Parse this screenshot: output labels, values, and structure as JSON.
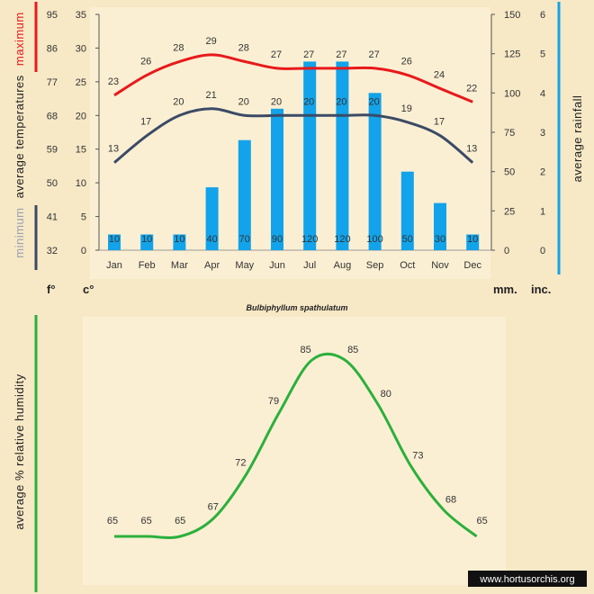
{
  "colors": {
    "maximum": "#e8191b",
    "minimum": "#3b4a66",
    "minimum_label": "#9aa1b2",
    "rainfall": "#12a3ea",
    "humidity": "#2bb03c"
  },
  "labels": {
    "species": "Bulbiphyllum spathulatum",
    "watermark": "www.hortusorchis.org",
    "unit_f": "f°",
    "unit_c": "c°",
    "unit_mm": "mm.",
    "unit_inc": "inc.",
    "temp_max_word": "maximum",
    "temp_avg_word": "average  temperatures",
    "temp_min_word": "minimum",
    "rain_title": "average rainfall",
    "humidity_title": "average %  relative humidity"
  },
  "chart_data": [
    {
      "type": "bar+line",
      "categories": [
        "Jan",
        "Feb",
        "Mar",
        "Apr",
        "May",
        "Jun",
        "Jul",
        "Aug",
        "Sep",
        "Oct",
        "Nov",
        "Dec"
      ],
      "series": [
        {
          "name": "maximum",
          "kind": "line",
          "axis": "celsius",
          "values": [
            23,
            26,
            28,
            29,
            28,
            27,
            27,
            27,
            27,
            26,
            24,
            22
          ]
        },
        {
          "name": "minimum",
          "kind": "line",
          "axis": "celsius",
          "values": [
            13,
            17,
            20,
            21,
            20,
            20,
            20,
            20,
            20,
            19,
            17,
            13
          ]
        },
        {
          "name": "average rainfall",
          "kind": "bar",
          "axis": "mm",
          "values": [
            10,
            10,
            10,
            40,
            70,
            90,
            120,
            120,
            100,
            50,
            30,
            10
          ]
        }
      ],
      "axes": {
        "fahrenheit": {
          "ticks": [
            32,
            41,
            50,
            59,
            68,
            77,
            86,
            95
          ],
          "range": [
            32,
            95
          ]
        },
        "celsius": {
          "ticks": [
            0,
            5,
            10,
            15,
            20,
            25,
            30,
            35
          ],
          "range": [
            0,
            35
          ]
        },
        "mm": {
          "ticks": [
            0,
            25,
            50,
            75,
            100,
            125,
            150
          ],
          "range": [
            0,
            150
          ]
        },
        "inches": {
          "ticks": [
            0,
            1,
            2,
            3,
            4,
            5,
            6
          ],
          "range": [
            0,
            6
          ]
        }
      },
      "grid": false,
      "legend": "none"
    },
    {
      "type": "line",
      "categories": [
        "Jan",
        "Feb",
        "Mar",
        "Apr",
        "May",
        "Jun",
        "Jul",
        "Aug",
        "Sep",
        "Oct",
        "Nov",
        "Dec"
      ],
      "series": [
        {
          "name": "average % relative humidity",
          "values": [
            65,
            65,
            65,
            67,
            72,
            79,
            85,
            85,
            80,
            73,
            68,
            65
          ]
        }
      ],
      "grid": false,
      "legend": "none"
    }
  ]
}
